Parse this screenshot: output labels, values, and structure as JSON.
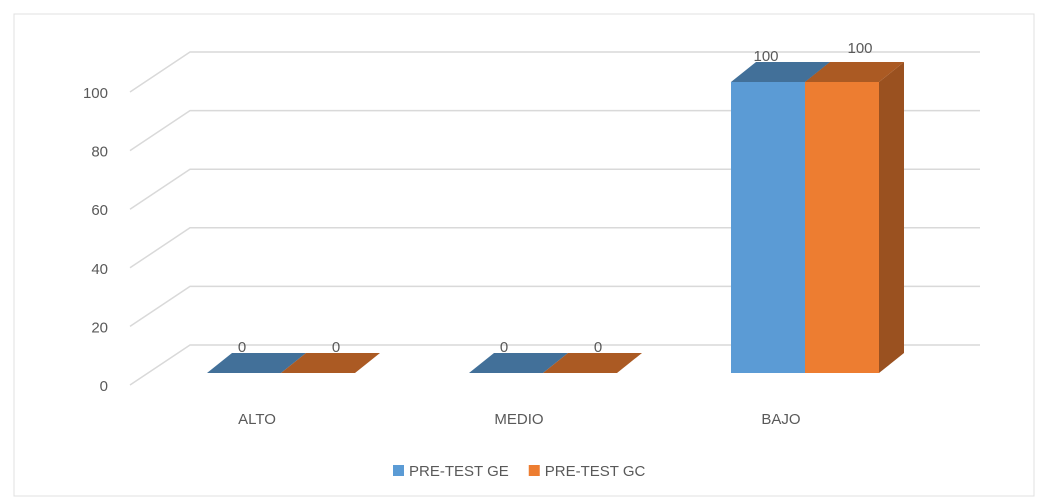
{
  "chart_data": {
    "type": "bar3d",
    "categories": [
      "ALTO",
      "MEDIO",
      "BAJO"
    ],
    "series": [
      {
        "name": "PRE-TEST GE",
        "color": "#5b9bd5",
        "values": [
          0,
          0,
          100
        ]
      },
      {
        "name": "PRE-TEST GC",
        "color": "#ed7d31",
        "values": [
          0,
          0,
          100
        ]
      }
    ],
    "ylim": [
      0,
      100
    ],
    "yticks": [
      0,
      20,
      40,
      60,
      80,
      100
    ],
    "grid": true,
    "legend": "bottom"
  }
}
